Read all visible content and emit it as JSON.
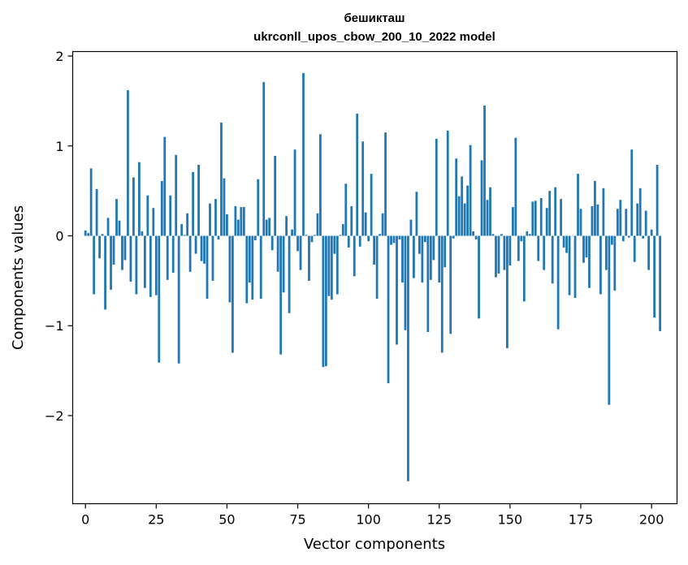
{
  "chart_data": {
    "type": "bar",
    "title": "бешикташ",
    "subtitle": "ukrconll_upos_cbow_200_10_2022 model",
    "xlabel": "Vector components",
    "ylabel": "Components values",
    "xlim": [
      -4.5,
      209
    ],
    "ylim": [
      -2.98,
      2.05
    ],
    "xticks": [
      0,
      25,
      50,
      75,
      100,
      125,
      150,
      175,
      200
    ],
    "yticks": [
      -2,
      -1,
      0,
      1,
      2
    ],
    "ytick_labels": [
      "−2",
      "−1",
      "0",
      "1",
      "2"
    ],
    "grid": false,
    "bar_color": "#1f77b4",
    "values": [
      0.06,
      0.03,
      0.75,
      -0.65,
      0.52,
      -0.25,
      0.02,
      -0.82,
      0.2,
      -0.6,
      -0.32,
      0.41,
      0.17,
      -0.38,
      -0.27,
      1.62,
      -0.51,
      0.65,
      -0.65,
      0.82,
      0.05,
      -0.58,
      0.45,
      -0.68,
      0.31,
      -0.66,
      -1.41,
      0.61,
      1.1,
      -0.49,
      0.45,
      -0.41,
      0.9,
      -1.42,
      0.13,
      0.01,
      0.25,
      -0.4,
      0.71,
      -0.2,
      0.79,
      -0.28,
      -0.31,
      -0.7,
      0.36,
      -0.5,
      0.41,
      -0.04,
      1.26,
      0.64,
      0.24,
      -0.74,
      -1.3,
      0.33,
      0.18,
      0.32,
      0.32,
      -0.75,
      -0.52,
      -0.71,
      -0.05,
      0.63,
      -0.7,
      1.71,
      0.18,
      0.2,
      -0.16,
      0.89,
      -0.4,
      -1.32,
      -0.63,
      0.22,
      -0.86,
      0.07,
      0.96,
      -0.17,
      -0.38,
      1.81,
      0.01,
      -0.5,
      -0.07,
      0.01,
      0.25,
      1.13,
      -1.46,
      -1.45,
      -0.67,
      -0.71,
      -0.2,
      -0.65,
      0.01,
      0.13,
      0.58,
      -0.13,
      0.33,
      -0.45,
      1.36,
      -0.12,
      1.05,
      0.26,
      -0.06,
      0.69,
      -0.32,
      -0.7,
      0.02,
      0.25,
      1.15,
      -1.64,
      -0.1,
      -0.08,
      -1.21,
      -0.04,
      -0.52,
      -1.05,
      -2.73,
      0.18,
      -0.47,
      0.49,
      -0.2,
      -0.52,
      -0.07,
      -1.07,
      -0.49,
      -0.27,
      1.08,
      -0.52,
      -1.3,
      -0.35,
      1.17,
      -1.09,
      -0.03,
      0.86,
      0.44,
      0.66,
      0.36,
      0.56,
      1.01,
      0.05,
      -0.04,
      -0.92,
      0.84,
      1.45,
      0.4,
      0.54,
      0.02,
      -0.46,
      -0.42,
      0.02,
      -0.38,
      -1.25,
      -0.33,
      0.32,
      1.09,
      -0.28,
      -0.06,
      -0.73,
      0.05,
      0.02,
      0.38,
      0.39,
      -0.28,
      0.42,
      -0.38,
      0.31,
      0.5,
      -0.53,
      0.54,
      -1.04,
      0.41,
      -0.13,
      -0.19,
      -0.66,
      0.0,
      -0.69,
      0.69,
      0.3,
      -0.3,
      -0.24,
      -0.58,
      0.33,
      0.61,
      0.35,
      -0.65,
      0.53,
      -0.38,
      -1.88,
      -0.1,
      -0.61,
      0.3,
      0.4,
      -0.06,
      0.3,
      -0.02,
      0.96,
      -0.29,
      0.36,
      0.53,
      -0.03,
      0.28,
      -0.38,
      0.07,
      -0.91,
      0.79,
      -1.06
    ]
  }
}
